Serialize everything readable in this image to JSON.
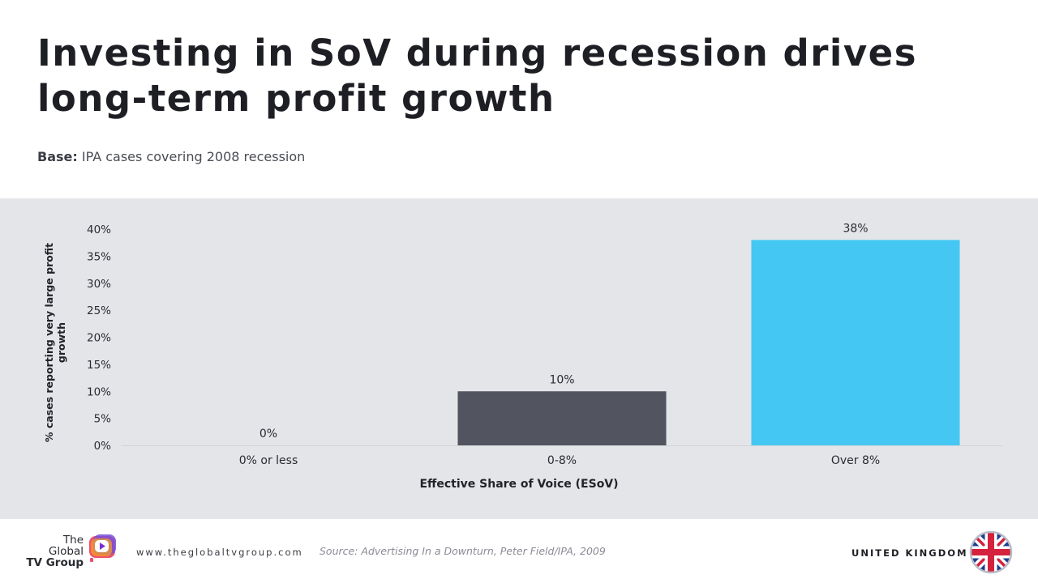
{
  "title": "Investing in SoV during recession drives long-term profit growth",
  "base": {
    "label": "Base:",
    "text": "IPA cases covering 2008 recession"
  },
  "chart_data": {
    "type": "bar",
    "categories": [
      "0% or less",
      "0-8%",
      "Over 8%"
    ],
    "values": [
      0,
      10,
      38
    ],
    "data_labels": [
      "0%",
      "10%",
      "38%"
    ],
    "colors": [
      "#52545f",
      "#52545f",
      "#44c8f3"
    ],
    "ylim": [
      0,
      40
    ],
    "yticks": [
      0,
      5,
      10,
      15,
      20,
      25,
      30,
      35,
      40
    ],
    "ytick_format": "%",
    "ylabel": "% cases reporting very large profit growth",
    "xlabel": "Effective Share of Voice (ESoV)",
    "grid": false,
    "legend": "none"
  },
  "footer": {
    "logo": {
      "line1": "The",
      "line2": "Global",
      "line3": "TV Group"
    },
    "website": "www.theglobaltvgroup.com",
    "source": "Source: Advertising In a Downturn, Peter Field/IPA, 2009",
    "country": "UNITED KINGDOM",
    "flag_icon": "uk-flag-icon"
  }
}
